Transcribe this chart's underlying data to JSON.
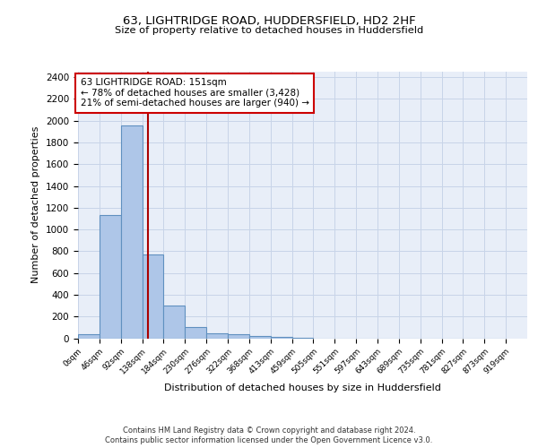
{
  "title1": "63, LIGHTRIDGE ROAD, HUDDERSFIELD, HD2 2HF",
  "title2": "Size of property relative to detached houses in Huddersfield",
  "xlabel": "Distribution of detached houses by size in Huddersfield",
  "ylabel": "Number of detached properties",
  "footnote1": "Contains HM Land Registry data © Crown copyright and database right 2024.",
  "footnote2": "Contains public sector information licensed under the Open Government Licence v3.0.",
  "bin_labels": [
    "0sqm",
    "46sqm",
    "92sqm",
    "138sqm",
    "184sqm",
    "230sqm",
    "276sqm",
    "322sqm",
    "368sqm",
    "413sqm",
    "459sqm",
    "505sqm",
    "551sqm",
    "597sqm",
    "643sqm",
    "689sqm",
    "735sqm",
    "781sqm",
    "827sqm",
    "873sqm",
    "919sqm"
  ],
  "bar_values": [
    35,
    1130,
    1960,
    770,
    300,
    100,
    45,
    35,
    20,
    15,
    5,
    0,
    0,
    0,
    0,
    0,
    0,
    0,
    0,
    0
  ],
  "bin_width": 46,
  "bar_color": "#aec6e8",
  "bar_edge_color": "#6090c0",
  "property_size": 151,
  "property_line_color": "#aa0000",
  "annotation_text": "63 LIGHTRIDGE ROAD: 151sqm\n← 78% of detached houses are smaller (3,428)\n21% of semi-detached houses are larger (940) →",
  "annotation_box_color": "#cc0000",
  "ylim": [
    0,
    2450
  ],
  "yticks": [
    0,
    200,
    400,
    600,
    800,
    1000,
    1200,
    1400,
    1600,
    1800,
    2000,
    2200,
    2400
  ],
  "grid_color": "#c8d4e8",
  "bg_color": "#e8eef8"
}
